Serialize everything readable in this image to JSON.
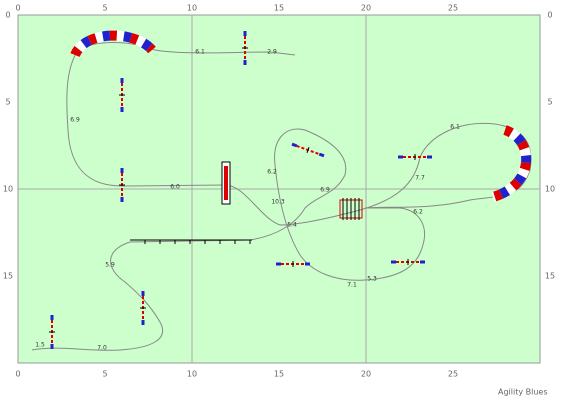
{
  "x_ticks": [
    0,
    5,
    10,
    15,
    20,
    25
  ],
  "y_ticks": [
    0,
    5,
    10,
    15
  ],
  "distances": [
    "6.1",
    "2.9",
    "6.9",
    "6.0",
    "6.2",
    "6.9",
    "10.3",
    "5.4",
    "5.9",
    "7.1",
    "5.3",
    "6.2",
    "7.7",
    "6.1",
    "7.0",
    "1.5"
  ],
  "footer": "Agility Blues"
}
